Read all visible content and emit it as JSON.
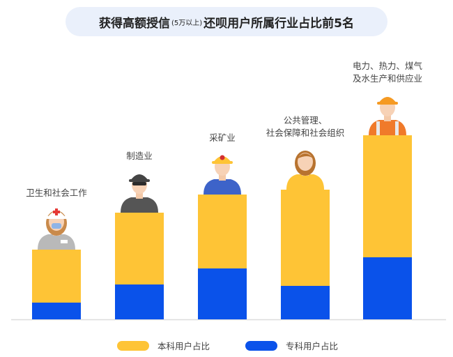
{
  "title": {
    "main_a": "获得高额授信",
    "sub": "(5万以上)",
    "main_b": "还呗用户所属行业占比前5名"
  },
  "legend": {
    "benke_label": "本科用户占比",
    "zhuanke_label": "专科用户占比"
  },
  "colors": {
    "benke": "#fec436",
    "zhuanke": "#0a52ea",
    "axis": "#dddddd"
  },
  "chart_data": {
    "type": "bar",
    "stacked": true,
    "categories": [
      [
        "卫生和社会工作"
      ],
      [
        "制造业"
      ],
      [
        "采矿业"
      ],
      [
        "公共管理、",
        "社会保障和社会组织"
      ],
      [
        "电力、热力、煤气",
        "及水生产和供应业"
      ]
    ],
    "icons": [
      "nurse-icon",
      "factory-worker-icon",
      "miner-icon",
      "office-worker-icon",
      "electrician-icon"
    ],
    "series": [
      {
        "name": "专科用户占比",
        "values": [
          24,
          50,
          73,
          48,
          89
        ]
      },
      {
        "name": "本科用户占比",
        "values": [
          76,
          103,
          106,
          138,
          175
        ]
      }
    ],
    "ylim": [
      0,
      270
    ],
    "grid": false,
    "legend_position": "bottom"
  }
}
